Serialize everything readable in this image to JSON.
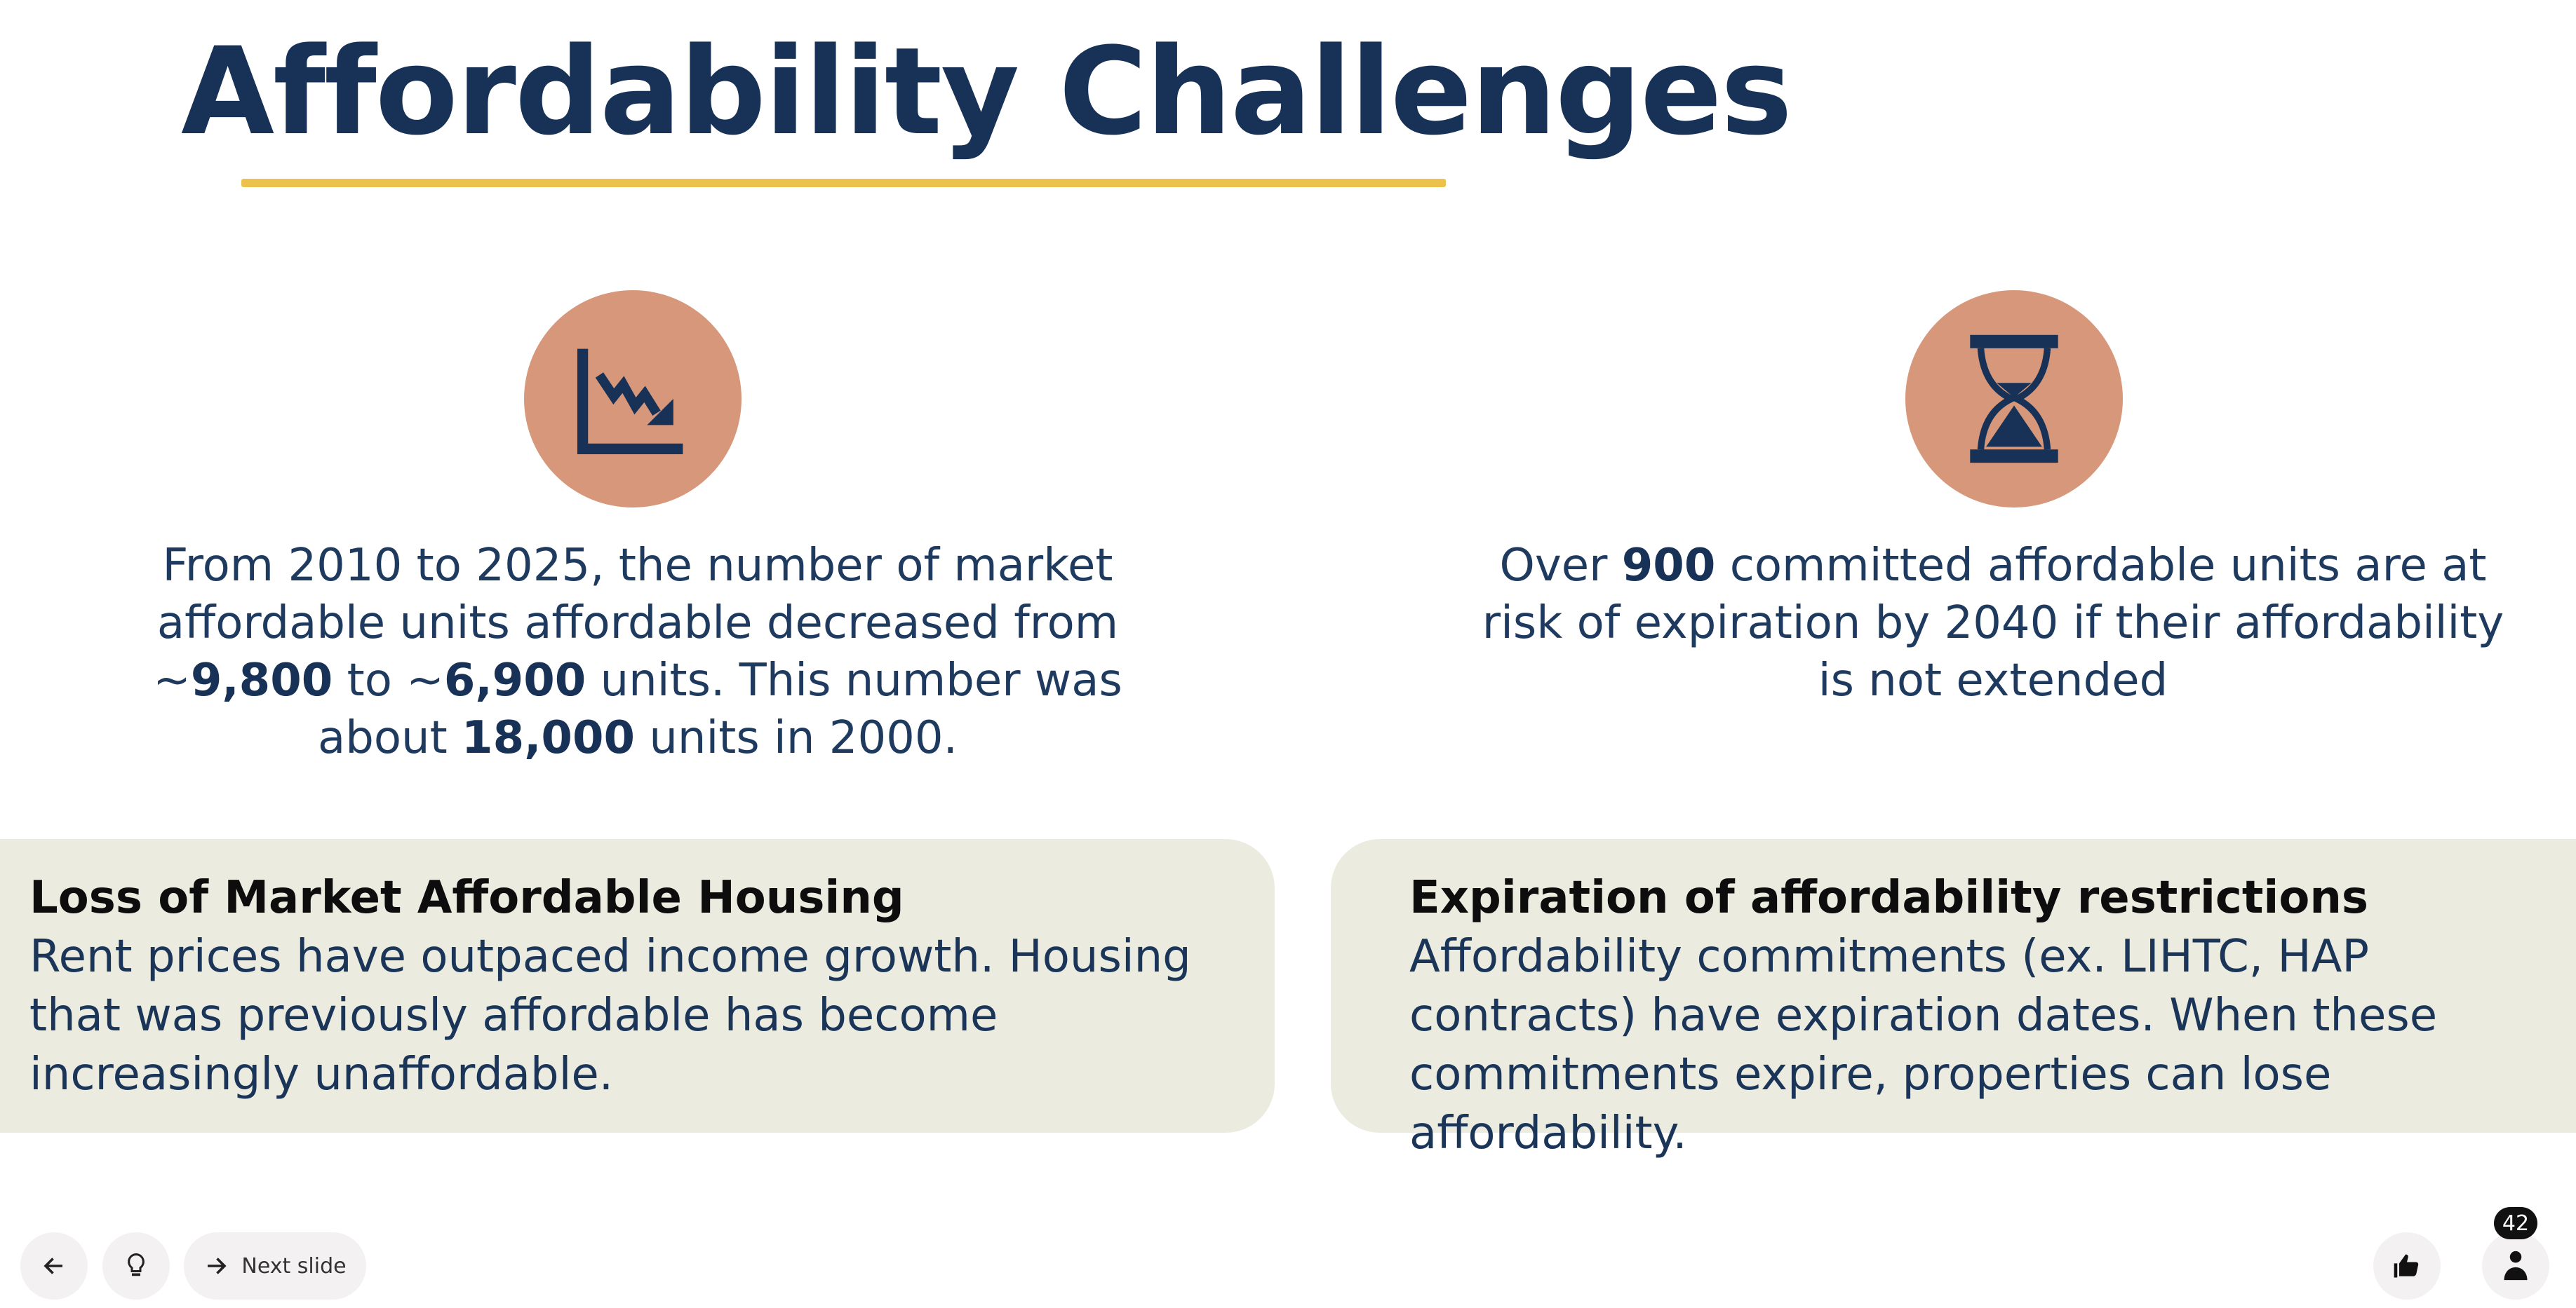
{
  "slide": {
    "title": "Affordability Challenges",
    "left_stat": {
      "icon": "declining-chart-icon",
      "parts": [
        "From 2010 to 2025, the number of market affordable units affordable decreased from ~",
        "9,800",
        " to ~",
        "6,900",
        " units. This number was about ",
        "18,000",
        " units in 2000."
      ]
    },
    "right_stat": {
      "icon": "hourglass-icon",
      "parts": [
        "Over ",
        "900",
        " committed affordable units are at risk of expiration by 2040 if their affordability is not extended"
      ]
    },
    "cards": [
      {
        "title": "Loss of Market Affordable Housing",
        "body": "Rent prices have outpaced income growth. Housing that was previously affordable has become increasingly unaffordable."
      },
      {
        "title": "Expiration of affordability restrictions",
        "body": "Affordability commitments (ex. LIHTC, HAP contracts) have expiration dates. When these commitments expire, properties can lose affordability."
      }
    ]
  },
  "controls": {
    "next_label": "Next slide",
    "participants_count": "42"
  },
  "colors": {
    "title": "#173256",
    "accent": "#ecc24c",
    "icon_bg": "#d6977a",
    "card_bg": "#ebebe0"
  }
}
